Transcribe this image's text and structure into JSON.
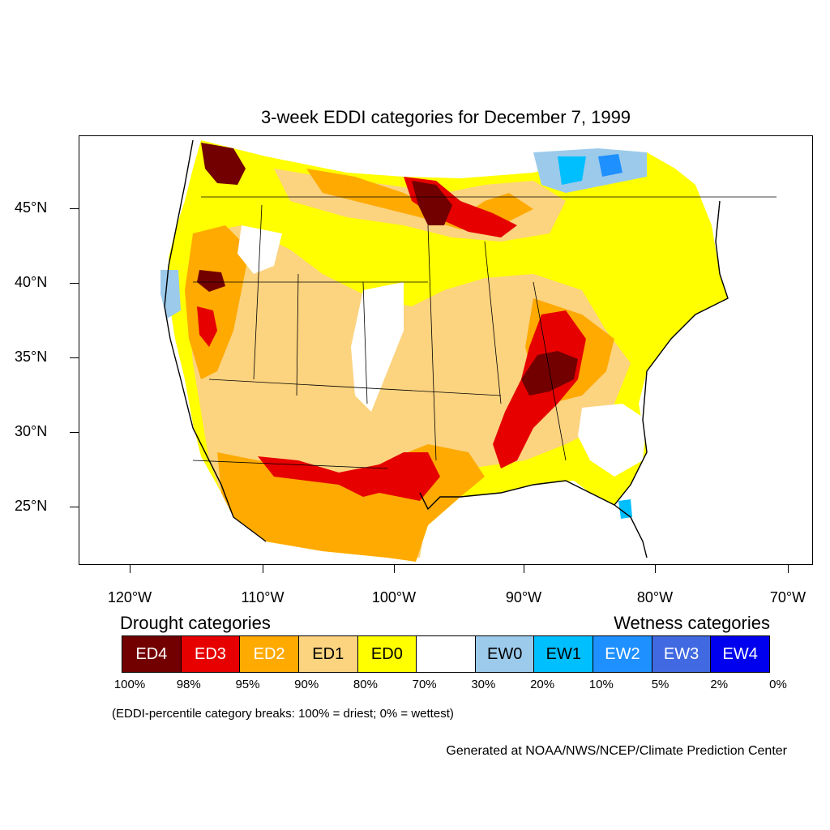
{
  "title": "3-week EDDI categories for December 7, 1999",
  "lat_labels": [
    "45°N",
    "40°N",
    "35°N",
    "30°N",
    "25°N"
  ],
  "lon_labels": [
    "120°W",
    "110°W",
    "100°W",
    "90°W",
    "80°W",
    "70°W"
  ],
  "legend": {
    "drought_title": "Drought categories",
    "wetness_title": "Wetness categories",
    "categories": [
      {
        "label": "ED4",
        "color": "#730000",
        "text_color": "#ffffff"
      },
      {
        "label": "ED3",
        "color": "#e60000",
        "text_color": "#ffffff"
      },
      {
        "label": "ED2",
        "color": "#ffaa00",
        "text_color": "#ffffff"
      },
      {
        "label": "ED1",
        "color": "#fcd37f",
        "text_color": "#000000"
      },
      {
        "label": "ED0",
        "color": "#ffff00",
        "text_color": "#000000"
      },
      {
        "label": "",
        "color": "#ffffff",
        "text_color": "#000000"
      },
      {
        "label": "EW0",
        "color": "#9ccaeb",
        "text_color": "#000000"
      },
      {
        "label": "EW1",
        "color": "#00bfff",
        "text_color": "#000000"
      },
      {
        "label": "EW2",
        "color": "#1e90ff",
        "text_color": "#ffffff"
      },
      {
        "label": "EW3",
        "color": "#4169e1",
        "text_color": "#ffffff"
      },
      {
        "label": "EW4",
        "color": "#0000ee",
        "text_color": "#ffffff"
      }
    ],
    "percentiles": [
      "100%",
      "98%",
      "95%",
      "90%",
      "80%",
      "70%",
      "30%",
      "20%",
      "10%",
      "5%",
      "2%",
      "0%"
    ]
  },
  "note": "(EDDI-percentile category breaks: 100% = driest; 0% = wettest)",
  "credit": "Generated at NOAA/NWS/NCEP/Climate Prediction Center"
}
